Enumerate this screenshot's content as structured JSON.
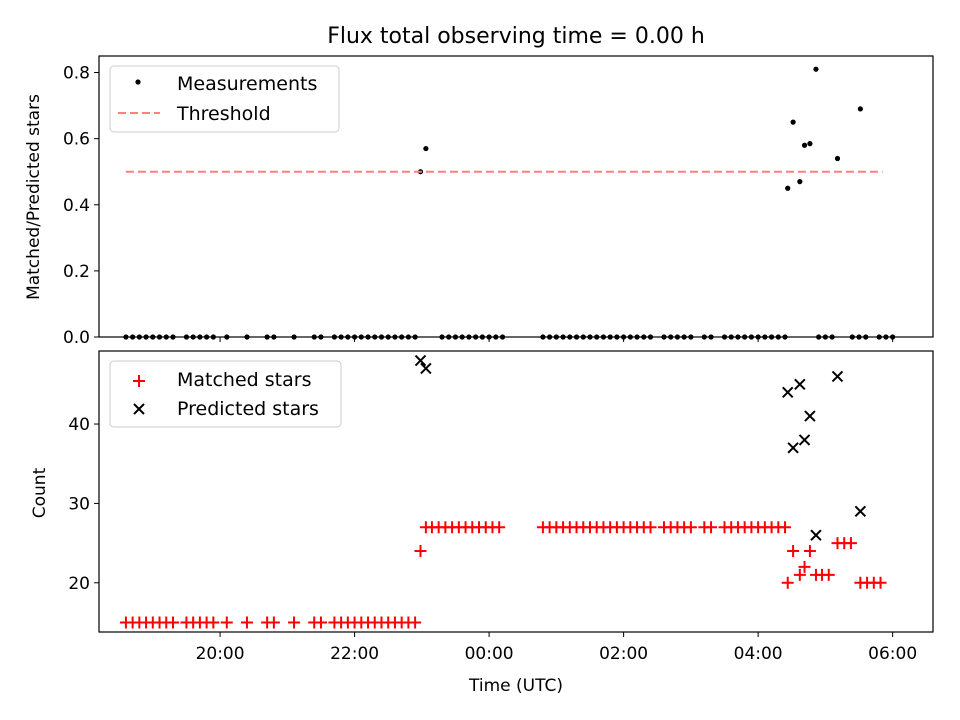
{
  "title": "Flux total observing time = 0.00 h",
  "x_axis": {
    "label": "Time (UTC)",
    "range_hours": [
      18.2,
      30.6
    ],
    "ticks": [
      {
        "hour": 20,
        "label": "20:00"
      },
      {
        "hour": 22,
        "label": "22:00"
      },
      {
        "hour": 24,
        "label": "00:00"
      },
      {
        "hour": 26,
        "label": "02:00"
      },
      {
        "hour": 28,
        "label": "04:00"
      },
      {
        "hour": 30,
        "label": "06:00"
      }
    ]
  },
  "colors": {
    "measurements": "#000000",
    "threshold": "#ff7f7f",
    "matched": "#ff0000",
    "predicted": "#000000"
  },
  "chart_data": [
    {
      "type": "scatter",
      "panel": "top",
      "ylabel": "Matched/Predicted stars",
      "ylim": [
        0,
        0.85
      ],
      "yticks": [
        "0.0",
        "0.2",
        "0.4",
        "0.6",
        "0.8"
      ],
      "legend": {
        "placement": "upper-left",
        "entries": [
          "Measurements",
          "Threshold"
        ]
      },
      "series": [
        {
          "name": "Measurements",
          "marker": "dot",
          "zero_x": [
            18.6,
            18.7,
            18.8,
            18.9,
            19.0,
            19.1,
            19.2,
            19.3,
            19.5,
            19.6,
            19.7,
            19.8,
            19.9,
            20.1,
            20.4,
            20.7,
            20.8,
            21.1,
            21.4,
            21.5,
            21.7,
            21.8,
            21.9,
            22.0,
            22.1,
            22.2,
            22.3,
            22.4,
            22.5,
            22.6,
            22.7,
            22.8,
            22.9,
            23.3,
            23.4,
            23.5,
            23.6,
            23.7,
            23.8,
            23.9,
            24.0,
            24.1,
            24.2,
            24.8,
            24.9,
            25.0,
            25.1,
            25.2,
            25.3,
            25.4,
            25.5,
            25.6,
            25.7,
            25.8,
            25.9,
            26.0,
            26.1,
            26.2,
            26.3,
            26.4,
            26.6,
            26.7,
            26.8,
            26.9,
            27.0,
            27.2,
            27.3,
            27.5,
            27.6,
            27.7,
            27.8,
            27.9,
            28.0,
            28.1,
            28.2,
            28.3,
            28.4,
            28.9,
            29.0,
            29.1,
            29.4,
            29.5,
            29.6,
            29.8,
            29.9,
            30.0
          ],
          "points": [
            {
              "x": 22.98,
              "y": 0.5
            },
            {
              "x": 23.06,
              "y": 0.57
            },
            {
              "x": 28.44,
              "y": 0.45
            },
            {
              "x": 28.52,
              "y": 0.65
            },
            {
              "x": 28.62,
              "y": 0.47
            },
            {
              "x": 28.69,
              "y": 0.58
            },
            {
              "x": 28.77,
              "y": 0.585
            },
            {
              "x": 28.86,
              "y": 0.81
            },
            {
              "x": 29.18,
              "y": 0.54
            },
            {
              "x": 29.52,
              "y": 0.69
            }
          ]
        },
        {
          "name": "Threshold",
          "style": "dashed",
          "x": [
            18.6,
            29.85
          ],
          "y": [
            0.5,
            0.5
          ]
        }
      ]
    },
    {
      "type": "scatter",
      "panel": "bottom",
      "ylabel": "Count",
      "ylim": [
        13.8,
        49.2
      ],
      "yticks": [
        "20",
        "30",
        "40"
      ],
      "legend": {
        "placement": "upper-left",
        "entries": [
          "Matched stars",
          "Predicted stars"
        ]
      },
      "series": [
        {
          "name": "Matched stars",
          "marker": "plus",
          "groups": [
            {
              "y": 15,
              "x": [
                18.6,
                18.7,
                18.8,
                18.9,
                19.0,
                19.1,
                19.2,
                19.3,
                19.5,
                19.6,
                19.7,
                19.8,
                19.9,
                20.1,
                20.4,
                20.7,
                20.8,
                21.1,
                21.4,
                21.5,
                21.7,
                21.8,
                21.9,
                22.0,
                22.1,
                22.2,
                22.3,
                22.4,
                22.5,
                22.6,
                22.7,
                22.8,
                22.9
              ]
            },
            {
              "y": 27,
              "x": [
                23.06,
                23.15,
                23.25,
                23.35,
                23.45,
                23.55,
                23.65,
                23.75,
                23.85,
                23.95,
                24.05,
                24.15,
                24.8,
                24.9,
                25.0,
                25.1,
                25.2,
                25.3,
                25.4,
                25.5,
                25.6,
                25.7,
                25.8,
                25.9,
                26.0,
                26.1,
                26.2,
                26.3,
                26.4,
                26.6,
                26.7,
                26.8,
                26.9,
                27.0,
                27.2,
                27.3,
                27.5,
                27.6,
                27.7,
                27.8,
                27.9,
                28.0,
                28.1,
                28.2,
                28.3,
                28.4
              ]
            }
          ],
          "points": [
            {
              "x": 22.98,
              "y": 24
            },
            {
              "x": 28.44,
              "y": 20
            },
            {
              "x": 28.52,
              "y": 24
            },
            {
              "x": 28.62,
              "y": 21
            },
            {
              "x": 28.69,
              "y": 22
            },
            {
              "x": 28.77,
              "y": 24
            },
            {
              "x": 28.86,
              "y": 21
            },
            {
              "x": 28.95,
              "y": 21
            },
            {
              "x": 29.05,
              "y": 21
            },
            {
              "x": 29.18,
              "y": 25
            },
            {
              "x": 29.28,
              "y": 25
            },
            {
              "x": 29.38,
              "y": 25
            },
            {
              "x": 29.52,
              "y": 20
            },
            {
              "x": 29.62,
              "y": 20
            },
            {
              "x": 29.72,
              "y": 20
            },
            {
              "x": 29.82,
              "y": 20
            }
          ]
        },
        {
          "name": "Predicted stars",
          "marker": "x",
          "points": [
            {
              "x": 22.98,
              "y": 48
            },
            {
              "x": 23.06,
              "y": 47
            },
            {
              "x": 28.44,
              "y": 44
            },
            {
              "x": 28.52,
              "y": 37
            },
            {
              "x": 28.62,
              "y": 45
            },
            {
              "x": 28.69,
              "y": 38
            },
            {
              "x": 28.77,
              "y": 41
            },
            {
              "x": 28.86,
              "y": 26
            },
            {
              "x": 29.18,
              "y": 46
            },
            {
              "x": 29.52,
              "y": 29
            }
          ]
        }
      ]
    }
  ]
}
